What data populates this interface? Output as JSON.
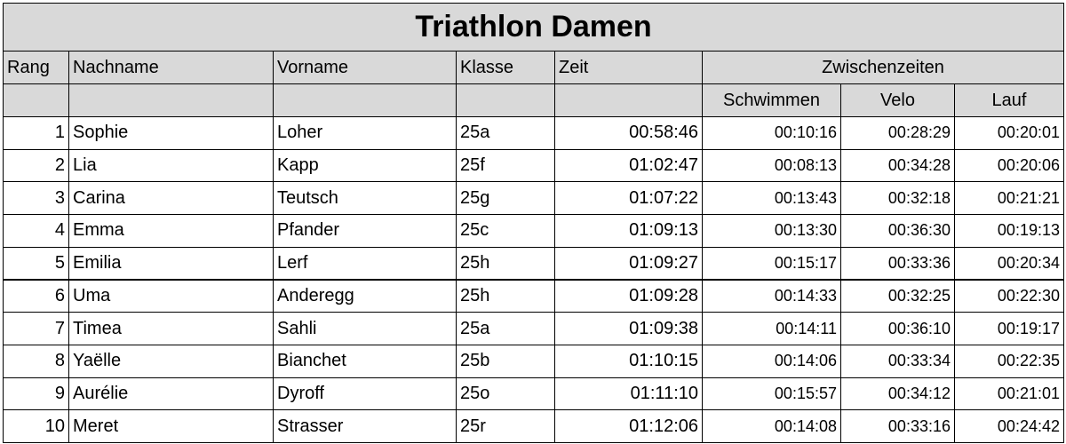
{
  "title": "Triathlon Damen",
  "headers": [
    "Rang",
    "Nachname",
    "Vorname",
    "Klasse",
    "Zeit",
    "Zwischenzeiten"
  ],
  "subheaders": [
    "Schwimmen",
    "Velo",
    "Lauf"
  ],
  "rows": [
    [
      1,
      "Sophie",
      "Loher",
      "25a",
      "00:58:46",
      "00:10:16",
      "00:28:29",
      "00:20:01"
    ],
    [
      2,
      "Lia",
      "Kapp",
      "25f",
      "01:02:47",
      "00:08:13",
      "00:34:28",
      "00:20:06"
    ],
    [
      3,
      "Carina",
      "Teutsch",
      "25g",
      "01:07:22",
      "00:13:43",
      "00:32:18",
      "00:21:21"
    ],
    [
      4,
      "Emma",
      "Pfander",
      "25c",
      "01:09:13",
      "00:13:30",
      "00:36:30",
      "00:19:13"
    ],
    [
      5,
      "Emilia",
      "Lerf",
      "25h",
      "01:09:27",
      "00:15:17",
      "00:33:36",
      "00:20:34"
    ],
    [
      6,
      "Uma",
      "Anderegg",
      "25h",
      "01:09:28",
      "00:14:33",
      "00:32:25",
      "00:22:30"
    ],
    [
      7,
      "Timea",
      "Sahli",
      "25a",
      "01:09:38",
      "00:14:11",
      "00:36:10",
      "00:19:17"
    ],
    [
      8,
      "Yaëlle",
      "Bianchet",
      "25b",
      "01:10:15",
      "00:14:06",
      "00:33:34",
      "00:22:35"
    ],
    [
      9,
      "Aurélie",
      "Dyroff",
      "25o",
      "01:11:10",
      "00:15:57",
      "00:34:12",
      "00:21:01"
    ],
    [
      10,
      "Meret",
      "Strasser",
      "25r",
      "01:12:06",
      "00:14:08",
      "00:33:16",
      "00:24:42"
    ]
  ]
}
